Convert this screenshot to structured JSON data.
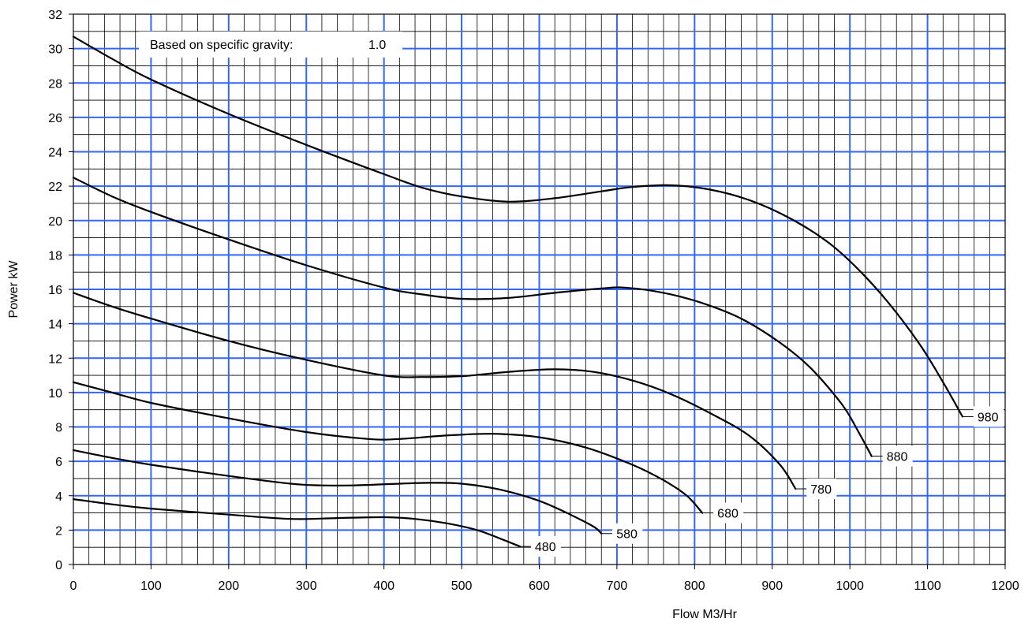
{
  "chart_data": {
    "type": "line",
    "xlabel": "Flow M3/Hr",
    "ylabel": "Power kW",
    "xlim": [
      0,
      1200
    ],
    "ylim": [
      0,
      32
    ],
    "x_major_step": 100,
    "x_minor_step": 20,
    "y_major_step": 2,
    "y_minor_step": 1,
    "grid": true,
    "colors": {
      "major_grid": "#3366ff",
      "minor_grid": "#000000",
      "curve": "#000000"
    },
    "x_ticks": [
      "0",
      "100",
      "200",
      "300",
      "400",
      "500",
      "600",
      "700",
      "800",
      "900",
      "1000",
      "1100",
      "1200"
    ],
    "y_ticks": [
      "0",
      "2",
      "4",
      "6",
      "8",
      "10",
      "12",
      "14",
      "16",
      "18",
      "20",
      "22",
      "24",
      "26",
      "28",
      "30",
      "32"
    ],
    "annotation": {
      "label": "Based on specific gravity:",
      "value": "1.0"
    },
    "series": [
      {
        "name": "980",
        "points": [
          [
            0,
            30.7
          ],
          [
            50,
            29.4
          ],
          [
            100,
            28.2
          ],
          [
            200,
            26.2
          ],
          [
            300,
            24.4
          ],
          [
            400,
            22.7
          ],
          [
            450,
            21.9
          ],
          [
            500,
            21.4
          ],
          [
            560,
            21.1
          ],
          [
            620,
            21.3
          ],
          [
            680,
            21.7
          ],
          [
            720,
            21.95
          ],
          [
            770,
            22.05
          ],
          [
            820,
            21.8
          ],
          [
            870,
            21.2
          ],
          [
            920,
            20.2
          ],
          [
            970,
            18.8
          ],
          [
            1010,
            17.2
          ],
          [
            1050,
            15.2
          ],
          [
            1090,
            12.8
          ],
          [
            1120,
            10.6
          ],
          [
            1145,
            8.6
          ]
        ]
      },
      {
        "name": "880",
        "points": [
          [
            0,
            22.5
          ],
          [
            50,
            21.4
          ],
          [
            100,
            20.5
          ],
          [
            200,
            18.9
          ],
          [
            300,
            17.4
          ],
          [
            400,
            16.1
          ],
          [
            450,
            15.7
          ],
          [
            500,
            15.45
          ],
          [
            560,
            15.5
          ],
          [
            620,
            15.8
          ],
          [
            680,
            16.05
          ],
          [
            710,
            16.1
          ],
          [
            760,
            15.8
          ],
          [
            810,
            15.2
          ],
          [
            860,
            14.3
          ],
          [
            910,
            12.9
          ],
          [
            950,
            11.4
          ],
          [
            990,
            9.3
          ],
          [
            1010,
            7.8
          ],
          [
            1028,
            6.3
          ]
        ]
      },
      {
        "name": "780",
        "points": [
          [
            0,
            15.8
          ],
          [
            50,
            15.0
          ],
          [
            100,
            14.3
          ],
          [
            200,
            13.0
          ],
          [
            300,
            11.9
          ],
          [
            400,
            11.0
          ],
          [
            450,
            10.9
          ],
          [
            500,
            10.95
          ],
          [
            560,
            11.2
          ],
          [
            620,
            11.35
          ],
          [
            670,
            11.2
          ],
          [
            720,
            10.7
          ],
          [
            770,
            9.9
          ],
          [
            820,
            8.8
          ],
          [
            870,
            7.5
          ],
          [
            910,
            5.8
          ],
          [
            930,
            4.4
          ]
        ]
      },
      {
        "name": "680",
        "points": [
          [
            0,
            10.6
          ],
          [
            50,
            10.0
          ],
          [
            100,
            9.4
          ],
          [
            200,
            8.5
          ],
          [
            300,
            7.7
          ],
          [
            380,
            7.3
          ],
          [
            420,
            7.3
          ],
          [
            480,
            7.5
          ],
          [
            540,
            7.6
          ],
          [
            600,
            7.4
          ],
          [
            660,
            6.8
          ],
          [
            720,
            5.8
          ],
          [
            760,
            4.9
          ],
          [
            790,
            4.0
          ],
          [
            810,
            3.0
          ]
        ]
      },
      {
        "name": "580",
        "points": [
          [
            0,
            6.65
          ],
          [
            50,
            6.2
          ],
          [
            100,
            5.8
          ],
          [
            200,
            5.15
          ],
          [
            280,
            4.7
          ],
          [
            320,
            4.6
          ],
          [
            360,
            4.6
          ],
          [
            420,
            4.7
          ],
          [
            460,
            4.75
          ],
          [
            500,
            4.7
          ],
          [
            550,
            4.35
          ],
          [
            600,
            3.7
          ],
          [
            640,
            2.9
          ],
          [
            670,
            2.2
          ],
          [
            680,
            1.8
          ]
        ]
      },
      {
        "name": "480",
        "points": [
          [
            0,
            3.8
          ],
          [
            50,
            3.5
          ],
          [
            100,
            3.25
          ],
          [
            200,
            2.9
          ],
          [
            280,
            2.65
          ],
          [
            340,
            2.7
          ],
          [
            400,
            2.75
          ],
          [
            440,
            2.65
          ],
          [
            480,
            2.4
          ],
          [
            520,
            2.0
          ],
          [
            550,
            1.5
          ],
          [
            575,
            1.05
          ]
        ]
      }
    ]
  }
}
